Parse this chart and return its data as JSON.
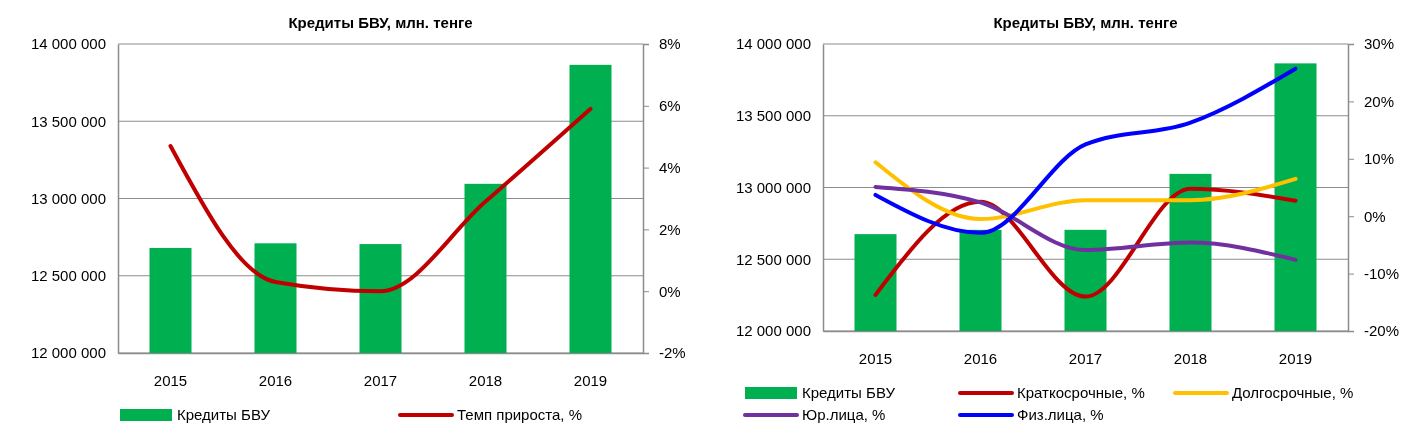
{
  "chart_data": [
    {
      "type": "bar",
      "title": "Кредиты БВУ, млн. тенге",
      "categories": [
        "2015",
        "2016",
        "2017",
        "2018",
        "2019"
      ],
      "series": [
        {
          "name": "Кредиты БВУ",
          "color": "#00b050",
          "values": [
            12680000,
            12710000,
            12705000,
            13095000,
            13865000
          ]
        },
        {
          "name": "Темп прироста, %",
          "type": "line",
          "axis": "y2",
          "color": "#c00000",
          "values": [
            4.7,
            0.3,
            0.0,
            2.9,
            5.9
          ]
        }
      ],
      "ylim": [
        12000000,
        14000000
      ],
      "yticks": [
        {
          "value": 12000000,
          "label": "12 000 000"
        },
        {
          "value": 12500000,
          "label": "12 500 000"
        },
        {
          "value": 13000000,
          "label": "13 000 000"
        },
        {
          "value": 13500000,
          "label": "13 500 000"
        },
        {
          "value": 14000000,
          "label": "14 000 000"
        }
      ],
      "y2lim": [
        -2,
        8
      ],
      "y2ticks": [
        {
          "value": -2,
          "label": "-2%"
        },
        {
          "value": 0,
          "label": "0%"
        },
        {
          "value": 2,
          "label": "2%"
        },
        {
          "value": 4,
          "label": "4%"
        },
        {
          "value": 6,
          "label": "6%"
        },
        {
          "value": 8,
          "label": "8%"
        }
      ],
      "grid": "y",
      "legend": "bottom",
      "marker": "none"
    },
    {
      "type": "bar",
      "title": "Кредиты БВУ, млн. тенге",
      "categories": [
        "2015",
        "2016",
        "2017",
        "2018",
        "2019"
      ],
      "series": [
        {
          "name": "Кредиты БВУ",
          "color": "#00b050",
          "values": [
            12675000,
            12705000,
            12705000,
            13095000,
            13865000
          ]
        },
        {
          "name": "Краткосрочные, %",
          "type": "line",
          "axis": "y2",
          "color": "#c00000",
          "values": [
            -13.7,
            2.5,
            -14.0,
            4.8,
            2.7
          ]
        },
        {
          "name": "Долгосрочные, %",
          "type": "line",
          "axis": "y2",
          "color": "#ffc000",
          "values": [
            9.4,
            -0.5,
            2.8,
            2.8,
            6.5
          ]
        },
        {
          "name": "Юр.лица, %",
          "type": "line",
          "axis": "y2",
          "color": "#7030a0",
          "values": [
            5.1,
            2.4,
            -5.9,
            -4.6,
            -7.6
          ]
        },
        {
          "name": "Физ.лица, %",
          "type": "line",
          "axis": "y2",
          "color": "#0000ff",
          "values": [
            3.7,
            -2.9,
            12.5,
            16.3,
            25.7
          ]
        }
      ],
      "ylim": [
        12000000,
        14000000
      ],
      "yticks": [
        {
          "value": 12000000,
          "label": "12 000 000"
        },
        {
          "value": 12500000,
          "label": "12 500 000"
        },
        {
          "value": 13000000,
          "label": "13 000 000"
        },
        {
          "value": 13500000,
          "label": "13 500 000"
        },
        {
          "value": 14000000,
          "label": "14 000 000"
        }
      ],
      "y2lim": [
        -20,
        30
      ],
      "y2ticks": [
        {
          "value": -20,
          "label": "-20%"
        },
        {
          "value": -10,
          "label": "-10%"
        },
        {
          "value": 0,
          "label": "0%"
        },
        {
          "value": 10,
          "label": "10%"
        },
        {
          "value": 20,
          "label": "20%"
        },
        {
          "value": 30,
          "label": "30%"
        }
      ],
      "grid": "y",
      "legend": "bottom",
      "marker": "none"
    }
  ]
}
